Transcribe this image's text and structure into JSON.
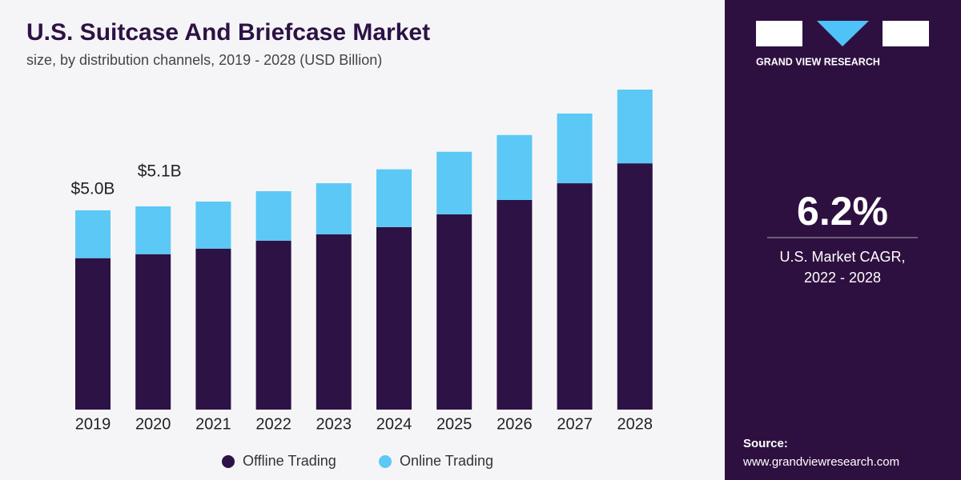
{
  "chart_data": {
    "type": "stacked_bar",
    "title": "U.S. Suitcase And Briefcase Market",
    "subtitle": "size, by distribution channels, 2019 - 2028 (USD Billion)",
    "categories": [
      "2019",
      "2020",
      "2021",
      "2022",
      "2023",
      "2024",
      "2025",
      "2026",
      "2027",
      "2028"
    ],
    "series": [
      {
        "name": "Offline Trading",
        "color": "#2d1245",
        "values": [
          3.8,
          3.9,
          4.04,
          4.24,
          4.4,
          4.58,
          4.9,
          5.26,
          5.68,
          6.18
        ]
      },
      {
        "name": "Online Trading",
        "color": "#5bc8f5",
        "values": [
          1.2,
          1.2,
          1.18,
          1.24,
          1.28,
          1.45,
          1.57,
          1.63,
          1.75,
          1.85
        ]
      }
    ],
    "total_labels": [
      {
        "index": 0,
        "value": 5.0,
        "label": "$5.0B"
      },
      {
        "index": 1,
        "value": 5.1,
        "label": "$5.1B"
      }
    ],
    "legend": "bottom"
  },
  "panel": {
    "brand": "GRAND VIEW RESEARCH",
    "stat": "6.2%",
    "stat_caption_1": "U.S. Market CAGR,",
    "stat_caption_2": "2022 - 2028",
    "source_label": "Source:",
    "source_url": "www.grandviewresearch.com"
  }
}
